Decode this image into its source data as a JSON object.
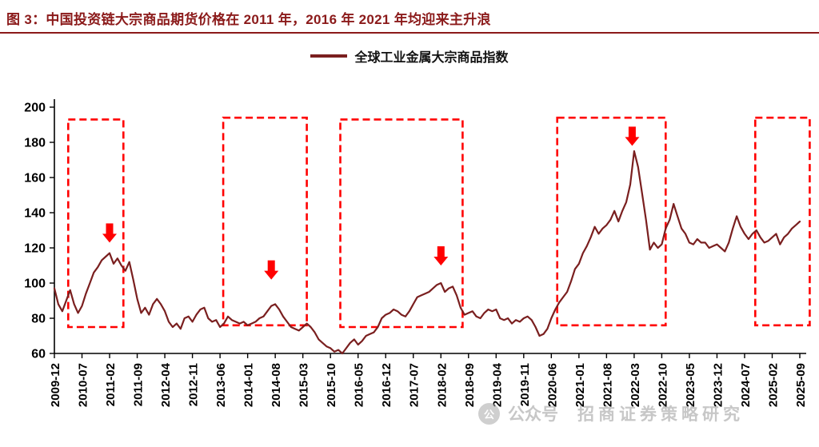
{
  "header": {
    "title": "图 3：中国投资链大宗商品期货价格在 2011 年，2016 年 2021 年均迎来主升浪"
  },
  "legend": {
    "label": "全球工业金属大宗商品指数"
  },
  "watermark": {
    "logo": "公",
    "label1": "公众号",
    "label2": "招商证券策略研究"
  },
  "theme": {
    "title_color": "#8B1A1A",
    "underline_color": "#8B1A1A",
    "axis_color": "#000000",
    "background": "#ffffff"
  },
  "chart_data": {
    "type": "line",
    "title": "中国投资链大宗商品期货价格在 2011 年，2016 年 2021 年均迎来主升浪",
    "xlabel": "",
    "ylabel": "",
    "ylim": [
      60,
      200
    ],
    "y_ticks": [
      60,
      80,
      100,
      120,
      140,
      160,
      180,
      200
    ],
    "grid": false,
    "legend_position": "top-center",
    "x_start_month": "2009-12",
    "x_end_month": "2025-09",
    "x_tick_step_months": 7,
    "x_tick_labels": [
      "2009-12",
      "2010-07",
      "2011-02",
      "2011-09",
      "2012-04",
      "2012-11",
      "2013-06",
      "2014-01",
      "2014-08",
      "2015-03",
      "2015-10",
      "2016-05",
      "2016-12",
      "2017-07",
      "2018-02",
      "2018-09",
      "2019-04",
      "2019-11",
      "2020-06",
      "2021-01",
      "2021-08",
      "2022-03",
      "2022-10",
      "2023-05",
      "2023-12",
      "2024-07",
      "2025-02",
      "2025-09"
    ],
    "series": [
      {
        "name": "全球工业金属大宗商品指数",
        "color": "#7A1F1F",
        "interval": "monthly",
        "values": [
          97,
          88,
          84,
          90,
          96,
          88,
          83,
          87,
          94,
          100,
          106,
          109,
          113,
          115,
          117,
          111,
          114,
          110,
          107,
          112,
          102,
          91,
          83,
          86,
          82,
          88,
          91,
          88,
          84,
          78,
          75,
          77,
          74,
          80,
          81,
          78,
          82,
          85,
          86,
          80,
          78,
          79,
          75,
          77,
          81,
          79,
          78,
          77,
          78,
          76,
          77,
          78,
          80,
          81,
          84,
          87,
          88,
          85,
          81,
          78,
          75,
          74,
          73,
          75,
          77,
          75,
          72,
          68,
          66,
          64,
          63,
          61,
          62,
          60,
          63,
          66,
          68,
          65,
          67,
          70,
          71,
          72,
          75,
          80,
          82,
          83,
          85,
          84,
          82,
          81,
          84,
          88,
          92,
          93,
          94,
          95,
          97,
          99,
          100,
          95,
          97,
          98,
          93,
          86,
          82,
          83,
          84,
          81,
          80,
          83,
          85,
          84,
          85,
          80,
          79,
          80,
          77,
          79,
          78,
          80,
          81,
          79,
          75,
          70,
          71,
          74,
          80,
          85,
          89,
          92,
          95,
          101,
          108,
          111,
          117,
          121,
          126,
          132,
          128,
          131,
          133,
          136,
          141,
          135,
          141,
          146,
          156,
          175,
          166,
          151,
          136,
          119,
          123,
          120,
          122,
          131,
          136,
          145,
          138,
          131,
          128,
          123,
          122,
          125,
          123,
          123,
          120,
          121,
          122,
          120,
          118,
          123,
          131,
          138,
          132,
          128,
          125,
          128,
          130,
          126,
          123,
          124,
          126,
          128,
          122,
          126,
          128,
          131,
          133,
          135
        ]
      }
    ],
    "highlight_boxes": [
      {
        "start_index": 3.5,
        "end_index": 17.5,
        "y_min": 75,
        "y_max": 193
      },
      {
        "start_index": 42.8,
        "end_index": 64.0,
        "y_min": 76,
        "y_max": 194
      },
      {
        "start_index": 72.5,
        "end_index": 103.5,
        "y_min": 75,
        "y_max": 193
      },
      {
        "start_index": 127.5,
        "end_index": 155.0,
        "y_min": 76,
        "y_max": 194
      },
      {
        "start_index": 177.7,
        "end_index": 191.5,
        "y_min": 76,
        "y_max": 194
      }
    ],
    "arrows": [
      {
        "index": 14,
        "tip_value": 123,
        "month": "2011-02"
      },
      {
        "index": 55,
        "tip_value": 102,
        "month": "2014-07"
      },
      {
        "index": 98,
        "tip_value": 110,
        "month": "2018-02"
      },
      {
        "index": 146.5,
        "tip_value": 178,
        "month": "2022-02"
      }
    ],
    "colors": {
      "highlight": "#FF0000",
      "arrow": "#FF0000"
    }
  }
}
